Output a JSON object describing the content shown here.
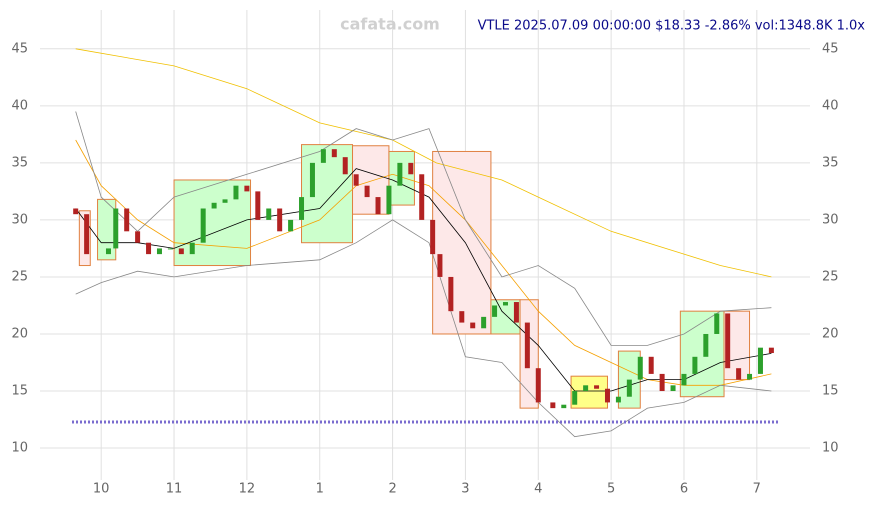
{
  "chart_data": {
    "type": "candlestick",
    "title": "VTLE 2025.07.09 00:00:00 $18.33 -2.86% vol:1348.8K 1.0x",
    "watermark": "cafata.com",
    "xlim": [
      9.16,
      19.73
    ],
    "ylim": [
      7.2,
      48.4
    ],
    "xticks": [
      10,
      11,
      12,
      {
        "value": 13,
        "label": "1"
      },
      {
        "value": 14,
        "label": "2"
      },
      {
        "value": 15,
        "label": "3"
      },
      {
        "value": 16,
        "label": "4"
      },
      {
        "value": 17,
        "label": "5"
      },
      {
        "value": 18,
        "label": "6"
      },
      {
        "value": 19,
        "label": "7"
      }
    ],
    "yticks": [
      10,
      15,
      20,
      25,
      30,
      35,
      40,
      45
    ],
    "grid": true,
    "up_color": "#2ca02c",
    "down_color": "#b22222",
    "x": [
      9.65,
      9.8,
      10.1,
      10.2,
      10.35,
      10.5,
      10.65,
      10.8,
      10.95,
      11.1,
      11.25,
      11.4,
      11.55,
      11.7,
      11.85,
      12.0,
      12.15,
      12.3,
      12.45,
      12.6,
      12.75,
      12.9,
      13.05,
      13.2,
      13.35,
      13.5,
      13.65,
      13.8,
      13.95,
      14.1,
      14.25,
      14.4,
      14.55,
      14.65,
      14.8,
      14.95,
      15.1,
      15.25,
      15.4,
      15.55,
      15.7,
      15.85,
      16.0,
      16.2,
      16.35,
      16.5,
      16.65,
      16.8,
      16.95,
      17.1,
      17.25,
      17.4,
      17.55,
      17.7,
      17.85,
      18.0,
      18.15,
      18.3,
      18.45,
      18.6,
      18.75,
      18.9,
      19.05,
      19.2
    ],
    "open": [
      31,
      30.5,
      27,
      27.5,
      31,
      29,
      28,
      27,
      27.5,
      27.5,
      27,
      28,
      31,
      31.5,
      31.8,
      33,
      32.5,
      30,
      31,
      29,
      30,
      32,
      35,
      36.2,
      35.5,
      34,
      33,
      32,
      30.5,
      33,
      35,
      34,
      30,
      27,
      25,
      22,
      21,
      20.5,
      21.5,
      22.5,
      22.8,
      21,
      17,
      14,
      13.5,
      13.8,
      15,
      15.5,
      15.2,
      14,
      14.5,
      16,
      18,
      16.5,
      15,
      15.5,
      16.5,
      18,
      20,
      21.8,
      17,
      16,
      16.5,
      18.8
    ],
    "close": [
      30.5,
      27,
      27.5,
      31,
      29,
      28,
      27,
      27.5,
      27.5,
      27,
      28,
      31,
      31.5,
      31.8,
      33,
      32.5,
      30,
      31,
      29,
      30,
      32,
      35,
      36.2,
      35.5,
      34,
      33,
      32,
      30.5,
      33,
      35,
      34,
      30,
      27,
      25,
      22,
      21,
      20.5,
      21.5,
      22.5,
      22.8,
      21,
      17,
      14,
      13.5,
      13.8,
      15,
      15.5,
      15.2,
      14,
      14.5,
      16,
      18,
      16.5,
      15,
      15.5,
      16.5,
      18,
      20,
      21.8,
      17,
      16,
      16.5,
      18.8,
      18.33
    ],
    "boxes": [
      {
        "x": [
          9.7,
          9.85
        ],
        "y": [
          26,
          30.8
        ],
        "color": "#fde8e8"
      },
      {
        "x": [
          9.95,
          10.2
        ],
        "y": [
          26.5,
          31.8
        ],
        "color": "#ccffcc"
      },
      {
        "x": [
          11.0,
          12.05
        ],
        "y": [
          26,
          33.5
        ],
        "color": "#ccffcc"
      },
      {
        "x": [
          12.75,
          13.45
        ],
        "y": [
          28,
          36.6
        ],
        "color": "#ccffcc"
      },
      {
        "x": [
          13.45,
          13.95
        ],
        "y": [
          30.5,
          36.5
        ],
        "color": "#fde8e8"
      },
      {
        "x": [
          13.95,
          14.3
        ],
        "y": [
          31.3,
          36
        ],
        "color": "#ccffcc"
      },
      {
        "x": [
          14.55,
          15.35
        ],
        "y": [
          20,
          36
        ],
        "color": "#fde8e8"
      },
      {
        "x": [
          15.35,
          15.75
        ],
        "y": [
          20,
          23
        ],
        "color": "#ccffcc"
      },
      {
        "x": [
          15.75,
          16.0
        ],
        "y": [
          13.5,
          23
        ],
        "color": "#fde8e8"
      },
      {
        "x": [
          16.45,
          16.95
        ],
        "y": [
          13.5,
          16.3
        ],
        "color": "#ffff88"
      },
      {
        "x": [
          17.1,
          17.4
        ],
        "y": [
          13.5,
          18.5
        ],
        "color": "#ccffcc"
      },
      {
        "x": [
          17.95,
          18.55
        ],
        "y": [
          14.5,
          22
        ],
        "color": "#ccffcc"
      },
      {
        "x": [
          18.55,
          18.9
        ],
        "y": [
          16,
          22
        ],
        "color": "#fde8e8"
      }
    ],
    "lines": [
      {
        "color": "#f0c000",
        "x": [
          9.65,
          11,
          12,
          13,
          14,
          14.6,
          15.5,
          16,
          17,
          18,
          18.5,
          19.2
        ],
        "values": [
          45,
          43.5,
          41.5,
          38.5,
          37,
          35,
          33.5,
          32,
          29,
          27,
          26,
          25
        ]
      },
      {
        "color": "#f5a000",
        "x": [
          9.65,
          10,
          10.5,
          11,
          12,
          13,
          13.5,
          14,
          14.5,
          15,
          15.5,
          16,
          16.5,
          17,
          17.5,
          18,
          18.5,
          19.2
        ],
        "values": [
          37,
          33,
          30,
          28,
          27.5,
          30,
          33,
          34,
          33,
          30,
          26,
          22,
          19,
          17.5,
          16,
          15.5,
          15.5,
          16.5
        ]
      },
      {
        "color": "#888888",
        "x": [
          9.65,
          10,
          10.5,
          11,
          12,
          13,
          13.5,
          14,
          14.5,
          15,
          15.5,
          16,
          16.5,
          17,
          17.5,
          18,
          18.5,
          19.2
        ],
        "values": [
          39.5,
          32,
          29,
          32,
          34,
          36,
          38,
          37,
          38,
          30,
          25,
          26,
          24,
          19,
          19,
          20,
          22,
          22.3
        ]
      },
      {
        "color": "#888888",
        "x": [
          9.65,
          10,
          10.5,
          11,
          12,
          13,
          13.5,
          14,
          14.5,
          15,
          15.5,
          16,
          16.5,
          17,
          17.5,
          18,
          18.5,
          19.2
        ],
        "values": [
          23.5,
          24.5,
          25.5,
          25,
          26,
          26.5,
          28,
          30,
          28,
          18,
          17.5,
          14,
          11,
          11.5,
          13.5,
          14,
          15.5,
          15
        ]
      },
      {
        "color": "#000000",
        "x": [
          9.65,
          10,
          10.5,
          11,
          12,
          13,
          13.5,
          14,
          14.5,
          15,
          15.5,
          16,
          16.5,
          17,
          17.5,
          18,
          18.5,
          19.2
        ],
        "values": [
          31,
          28,
          28,
          27.5,
          30,
          31,
          34.5,
          33.5,
          32,
          28,
          22,
          19,
          15,
          15,
          16,
          16,
          17.5,
          18.3
        ]
      }
    ]
  }
}
